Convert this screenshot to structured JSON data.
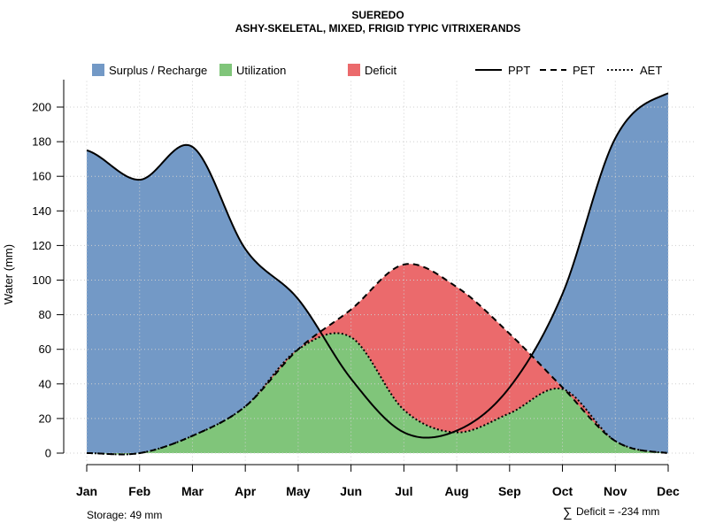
{
  "chart_data": {
    "type": "area",
    "title": "SUEREDO",
    "subtitle": "ASHY-SKELETAL, MIXED, FRIGID TYPIC VITRIXERANDS",
    "xlabel": "",
    "ylabel": "Water (mm)",
    "ylim": [
      0,
      215
    ],
    "yticks": [
      0,
      20,
      40,
      60,
      80,
      100,
      120,
      140,
      160,
      180,
      200
    ],
    "categories": [
      "Jan",
      "Feb",
      "Mar",
      "Apr",
      "May",
      "Jun",
      "Jul",
      "Aug",
      "Sep",
      "Oct",
      "Nov",
      "Dec"
    ],
    "grid": true,
    "series": [
      {
        "name": "PPT",
        "line": "solid",
        "values": [
          175,
          158,
          177,
          118,
          89,
          43,
          12,
          13,
          38,
          92,
          182,
          208
        ]
      },
      {
        "name": "PET",
        "line": "dashed",
        "values": [
          0,
          0,
          10,
          27,
          60,
          83,
          109,
          96,
          69,
          38,
          7,
          0
        ]
      },
      {
        "name": "AET",
        "line": "dotted",
        "values": [
          0,
          0,
          10,
          27,
          60,
          67,
          25,
          12,
          23,
          37,
          7,
          0
        ]
      }
    ],
    "areas": [
      {
        "name": "Surplus / Recharge",
        "color": "#7399C6"
      },
      {
        "name": "Utilization",
        "color": "#80C57A"
      },
      {
        "name": "Deficit",
        "color": "#EB6A6C"
      }
    ],
    "legend_position": "top"
  },
  "footer": {
    "storage": "Storage: 49 mm",
    "deficit_symbol": "∑",
    "deficit": "Deficit = -234 mm"
  }
}
